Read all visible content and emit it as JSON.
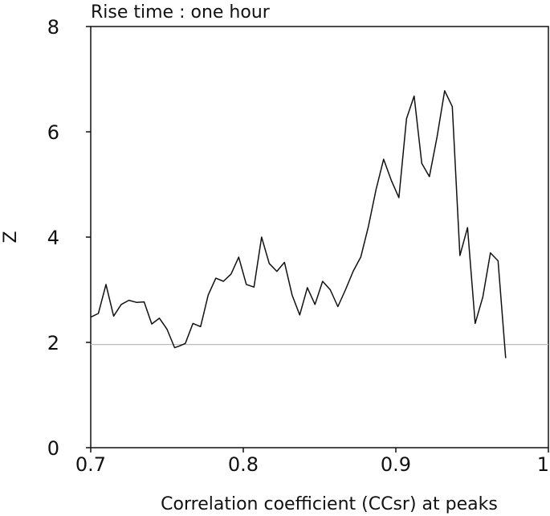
{
  "chart_data": {
    "type": "line",
    "title": "Rise time : one hour",
    "xlabel": "Correlation coefficient (CCsr) at peaks",
    "ylabel": "Z",
    "xlim": [
      0.7,
      1.0
    ],
    "ylim": [
      0,
      8
    ],
    "xticks": [
      0.7,
      0.8,
      0.9,
      1.0
    ],
    "xtick_labels": [
      "0.7",
      "0.8",
      "0.9",
      "1"
    ],
    "yticks": [
      0,
      2,
      4,
      6,
      8
    ],
    "ytick_labels": [
      "0",
      "2",
      "4",
      "6",
      "8"
    ],
    "grid": false,
    "reference_line": {
      "y": 1.96,
      "color": "#bbbbbb"
    },
    "series": [
      {
        "color": "#111111",
        "x": [
          0.7,
          0.705,
          0.71,
          0.715,
          0.72,
          0.725,
          0.73,
          0.735,
          0.74,
          0.745,
          0.75,
          0.755,
          0.758,
          0.762,
          0.767,
          0.772,
          0.777,
          0.782,
          0.787,
          0.792,
          0.797,
          0.802,
          0.807,
          0.812,
          0.817,
          0.822,
          0.827,
          0.832,
          0.837,
          0.842,
          0.847,
          0.852,
          0.857,
          0.862,
          0.867,
          0.872,
          0.877,
          0.882,
          0.887,
          0.892,
          0.897,
          0.902,
          0.907,
          0.912,
          0.917,
          0.922,
          0.927,
          0.932,
          0.937,
          0.942,
          0.947,
          0.952,
          0.957,
          0.962,
          0.967,
          0.972
        ],
        "y": [
          2.48,
          2.55,
          3.1,
          2.5,
          2.72,
          2.8,
          2.76,
          2.77,
          2.35,
          2.46,
          2.25,
          1.9,
          1.93,
          1.98,
          2.36,
          2.3,
          2.9,
          3.22,
          3.16,
          3.3,
          3.62,
          3.1,
          3.05,
          4.0,
          3.5,
          3.35,
          3.52,
          2.9,
          2.52,
          3.04,
          2.72,
          3.16,
          3.0,
          2.68,
          3.0,
          3.35,
          3.62,
          4.2,
          4.9,
          5.48,
          5.08,
          4.75,
          6.25,
          6.68,
          5.4,
          5.15,
          5.9,
          6.78,
          6.48,
          3.65,
          4.18,
          2.36,
          2.86,
          3.7,
          3.55,
          1.7
        ]
      }
    ]
  }
}
